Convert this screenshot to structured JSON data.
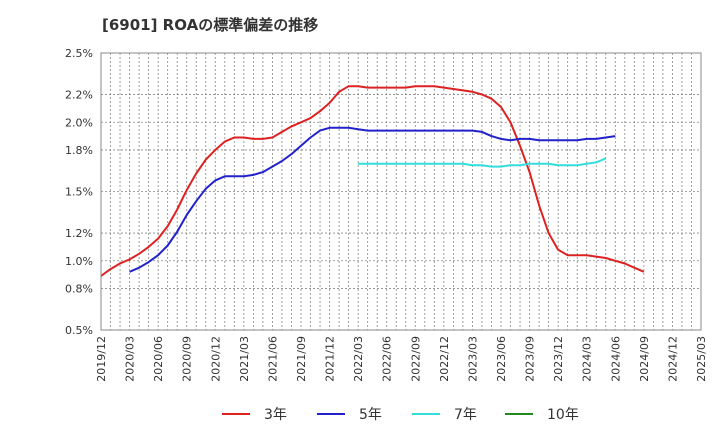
{
  "chart_data": {
    "type": "line",
    "title": "[6901]  ROAの標準偏差の推移",
    "xlabel": "",
    "ylabel": "",
    "ylim": [
      0.5,
      2.5
    ],
    "yticks": [
      0.5,
      0.8,
      1.0,
      1.2,
      1.5,
      1.8,
      2.0,
      2.2,
      2.5
    ],
    "ytick_labels": [
      "0.5%",
      "0.8%",
      "1.0%",
      "1.2%",
      "1.5%",
      "1.8%",
      "2.0%",
      "2.2%",
      "2.5%"
    ],
    "x_start": "2019/12",
    "xtick_labels": [
      "2019/12",
      "2020/03",
      "2020/06",
      "2020/09",
      "2020/12",
      "2021/03",
      "2021/06",
      "2021/09",
      "2021/12",
      "2022/03",
      "2022/06",
      "2022/09",
      "2022/12",
      "2023/03",
      "2023/06",
      "2023/09",
      "2023/12",
      "2024/03",
      "2024/06",
      "2024/09",
      "2024/12",
      "2025/03"
    ],
    "grid": true,
    "legend_position": "bottom",
    "series": [
      {
        "name": "3年",
        "color": "#dd2222",
        "start": "2019/12",
        "values": [
          0.89,
          0.94,
          0.98,
          1.01,
          1.05,
          1.1,
          1.16,
          1.25,
          1.37,
          1.51,
          1.63,
          1.73,
          1.8,
          1.86,
          1.89,
          1.89,
          1.88,
          1.88,
          1.89,
          1.93,
          1.97,
          2.0,
          2.03,
          2.08,
          2.14,
          2.22,
          2.26,
          2.26,
          2.25,
          2.25,
          2.25,
          2.25,
          2.25,
          2.26,
          2.26,
          2.26,
          2.25,
          2.24,
          2.23,
          2.22,
          2.2,
          2.17,
          2.11,
          2.0,
          1.83,
          1.64,
          1.4,
          1.2,
          1.08,
          1.04,
          1.04,
          1.04,
          1.03,
          1.02,
          1.0,
          0.98,
          0.95,
          0.92
        ]
      },
      {
        "name": "5年",
        "color": "#2222cc",
        "start": "2020/03",
        "values": [
          0.92,
          0.95,
          0.99,
          1.04,
          1.11,
          1.21,
          1.33,
          1.43,
          1.52,
          1.58,
          1.61,
          1.61,
          1.61,
          1.62,
          1.64,
          1.68,
          1.72,
          1.77,
          1.83,
          1.89,
          1.94,
          1.96,
          1.96,
          1.96,
          1.95,
          1.94,
          1.94,
          1.94,
          1.94,
          1.94,
          1.94,
          1.94,
          1.94,
          1.94,
          1.94,
          1.94,
          1.94,
          1.93,
          1.9,
          1.88,
          1.87,
          1.88,
          1.88,
          1.87,
          1.87,
          1.87,
          1.87,
          1.87,
          1.88,
          1.88,
          1.89,
          1.9
        ]
      },
      {
        "name": "7年",
        "color": "#33dddd",
        "start": "2022/03",
        "values": [
          1.7,
          1.7,
          1.7,
          1.7,
          1.7,
          1.7,
          1.7,
          1.7,
          1.7,
          1.7,
          1.7,
          1.7,
          1.69,
          1.69,
          1.68,
          1.68,
          1.69,
          1.69,
          1.7,
          1.7,
          1.7,
          1.69,
          1.69,
          1.69,
          1.7,
          1.71,
          1.74
        ]
      },
      {
        "name": "10年",
        "color": "#228822",
        "start": "2024/12",
        "values": []
      }
    ]
  }
}
